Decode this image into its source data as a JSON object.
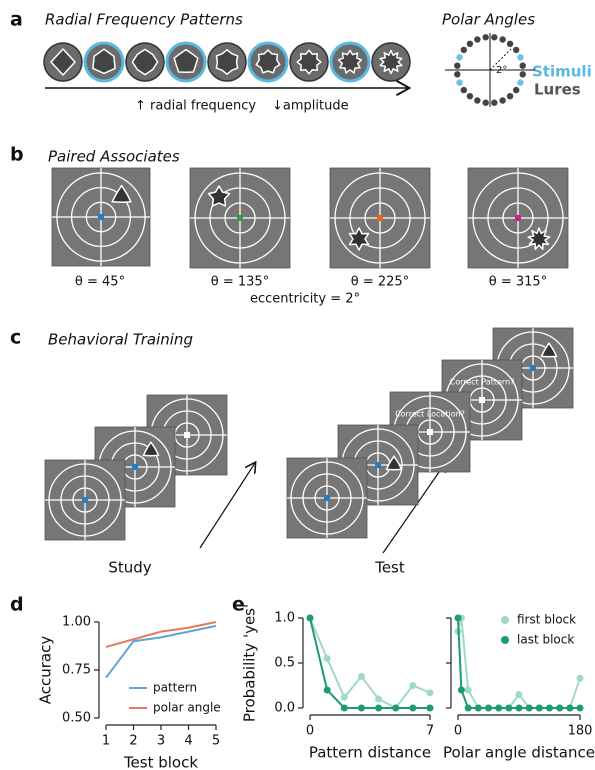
{
  "panels": {
    "a": {
      "letter": "a",
      "title": "Radial Frequency Patterns",
      "arrow_labels": [
        "↑ radial frequency",
        "↓amplitude"
      ],
      "polar_title": "Polar Angles",
      "angle_label": "2°",
      "legend": [
        "Stimuli",
        "Lures"
      ]
    },
    "b": {
      "letter": "b",
      "title": "Paired Associates",
      "captions": [
        "θ = 45°",
        "θ = 135°",
        "θ = 225°",
        "θ = 315°"
      ],
      "note": "eccentricity = 2°"
    },
    "c": {
      "letter": "c",
      "title": "Behavioral Training",
      "prompts": [
        "Correct Location?",
        "Correct Pattern?"
      ],
      "phases": [
        "Study",
        "Test"
      ]
    },
    "d": {
      "letter": "d"
    },
    "e": {
      "letter": "e"
    }
  },
  "chart_data": [
    {
      "type": "line",
      "xlabel": "Test block",
      "ylabel": "Accuracy",
      "x": [
        1,
        2,
        3,
        4,
        5
      ],
      "series": [
        {
          "name": "pattern",
          "color": "#5aa5d6",
          "values": [
            0.71,
            0.9,
            0.92,
            0.95,
            0.98
          ]
        },
        {
          "name": "polar angle",
          "color": "#e9775a",
          "values": [
            0.87,
            0.91,
            0.95,
            0.97,
            1.0
          ]
        }
      ],
      "xlim": [
        1,
        5
      ],
      "xticks": [
        1,
        2,
        3,
        4,
        5
      ],
      "ylim": [
        0.5,
        1.0
      ],
      "yticks": [
        {
          "value": 0.5,
          "label": "0.50"
        },
        {
          "value": 0.75,
          "label": "0.75"
        },
        {
          "value": 1.0,
          "label": "1.00"
        }
      ],
      "legend": "lower right",
      "markers": false
    },
    {
      "type": "line",
      "xlabel": "Pattern distance",
      "ylabel": "Probability 'yes'",
      "x": [
        0,
        1,
        2,
        3,
        4,
        5,
        6,
        7
      ],
      "series": [
        {
          "color": "#9fdbc2",
          "values": [
            1.0,
            0.55,
            0.12,
            0.35,
            0.1,
            0.0,
            0.25,
            0.17
          ]
        },
        {
          "color": "#1e9c6c",
          "values": [
            1.0,
            0.2,
            0.0,
            0.0,
            0.0,
            0.0,
            0.0,
            0.0
          ]
        }
      ],
      "xlim": [
        0,
        7
      ],
      "xticks": [
        0,
        7
      ],
      "ylim": [
        0,
        1
      ],
      "yticks": [
        {
          "value": 0,
          "label": "0.0"
        },
        {
          "value": 0.5,
          "label": "0.5"
        },
        {
          "value": 1,
          "label": "1.0"
        }
      ],
      "markers": true
    },
    {
      "type": "line",
      "xlabel": "Polar angle distance",
      "x": [
        0,
        5,
        15,
        30,
        45,
        60,
        75,
        90,
        105,
        120,
        135,
        150,
        165,
        180
      ],
      "series": [
        {
          "name": "first block",
          "color": "#9fdbc2",
          "values": [
            0.85,
            1.0,
            0.2,
            0,
            0,
            0,
            0,
            0.15,
            0,
            0,
            0,
            0,
            0,
            0.33
          ]
        },
        {
          "name": "last block",
          "color": "#1e9c6c",
          "values": [
            1.0,
            0.2,
            0,
            0,
            0,
            0,
            0,
            0,
            0,
            0,
            0,
            0,
            0,
            0
          ]
        }
      ],
      "xlim": [
        0,
        180
      ],
      "xticks": [
        0,
        180
      ],
      "ylim": [
        0,
        1
      ],
      "yticks": [
        0,
        0.5,
        1
      ],
      "ytick_labels": false,
      "legend": "upper right",
      "markers": true
    }
  ]
}
